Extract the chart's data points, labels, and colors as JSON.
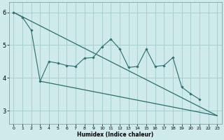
{
  "xlabel": "Humidex (Indice chaleur)",
  "bg_color": "#ceeaea",
  "grid_color": "#a8cece",
  "line_color": "#2a6e6e",
  "zigzag": {
    "x": [
      0,
      1,
      2,
      3,
      4,
      5,
      6,
      7,
      8,
      9,
      10,
      11,
      12,
      13,
      14,
      15,
      16,
      17,
      18,
      19,
      20,
      21
    ],
    "y": [
      6.0,
      5.85,
      5.45,
      3.9,
      4.5,
      4.45,
      4.38,
      4.35,
      4.6,
      4.62,
      4.95,
      5.18,
      4.88,
      4.32,
      4.35,
      4.88,
      4.35,
      4.38,
      4.62,
      3.72,
      3.52,
      3.35
    ]
  },
  "diag_upper": {
    "x": [
      0,
      23
    ],
    "y": [
      6.0,
      2.85
    ]
  },
  "diag_lower": {
    "x": [
      3,
      23
    ],
    "y": [
      3.9,
      2.85
    ]
  },
  "xlim": [
    -0.5,
    23.5
  ],
  "ylim": [
    2.6,
    6.3
  ],
  "yticks": [
    3,
    4,
    5,
    6
  ],
  "xticks": [
    0,
    1,
    2,
    3,
    4,
    5,
    6,
    7,
    8,
    9,
    10,
    11,
    12,
    13,
    14,
    15,
    16,
    17,
    18,
    19,
    20,
    21,
    22,
    23
  ]
}
